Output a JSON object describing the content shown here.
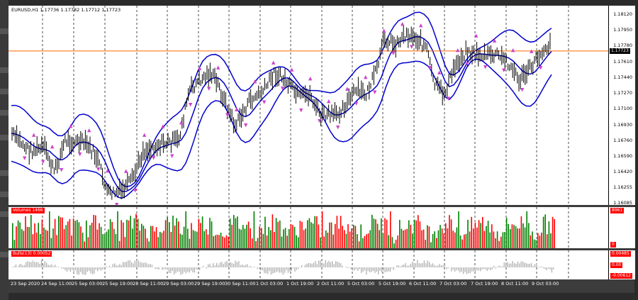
{
  "symbol_info": "EURUSD,H1  1.17736 1.17782 1.17712 1.17723",
  "current_price": "1.17723",
  "current_price_value": 1.17723,
  "price_axis_labels": [
    "1.18120",
    "1.17950",
    "1.17780",
    "1.17610",
    "1.17440",
    "1.17270",
    "1.17100",
    "1.16930",
    "1.16760",
    "1.16590",
    "1.16420",
    "1.16255",
    "1.16085"
  ],
  "volume_label": "Volumes 1466",
  "volume_axis_labels": [
    "8961",
    "0"
  ],
  "subindicator_label": "Bulls(13) 0.00052",
  "subindicator_axis_labels": [
    "0.00485",
    "0.00",
    "-0.00612"
  ],
  "time_labels": [
    "23 Sep 2020",
    "24 Sep 11:00",
    "25 Sep 03:00",
    "25 Sep 19:00",
    "28 Sep 11:00",
    "29 Sep 03:00",
    "29 Sep 19:00",
    "30 Sep 11:00",
    "1 Oct 03:00",
    "1 Oct 19:00",
    "2 Oct 11:00",
    "5 Oct 03:00",
    "5 Oct 19:00",
    "6 Oct 11:00",
    "7 Oct 03:00",
    "7 Oct 19:00",
    "8 Oct 11:00",
    "9 Oct 03:00"
  ],
  "colors": {
    "candles": "#000000",
    "bands": "#0000cc",
    "fractals": "#cc44cc",
    "current_price_line": "#ff6600",
    "volume_up": "#008000",
    "volume_down": "#ff0000",
    "indicator_bars": "#b0b0b0",
    "grid": "#000000",
    "window_bg": "#3c3c3c"
  }
}
